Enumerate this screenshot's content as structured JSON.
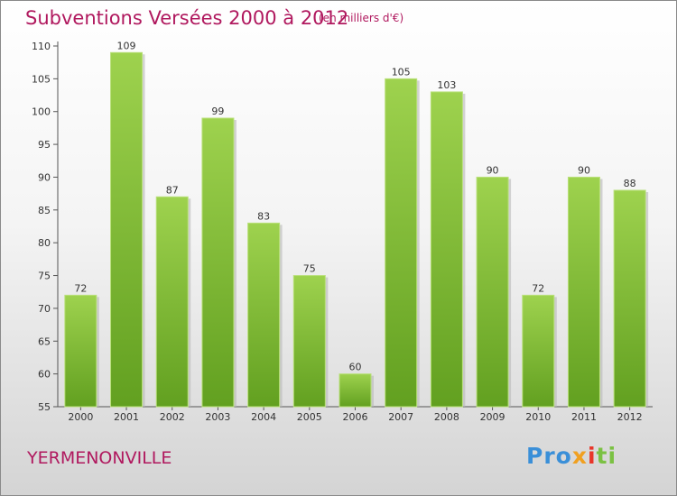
{
  "title": "Subventions Versées 2000 à 2012",
  "subtitle": "(en milliers d'€)",
  "commune": "YERMENONVILLE",
  "logo": {
    "p1": "Pro",
    "p2": "x",
    "p3": "i",
    "p4": "ti"
  },
  "colors": {
    "bar": "#84c23e",
    "bar_dark": "#62a020",
    "title": "#b0185e",
    "axis": "#555555"
  },
  "chart_data": {
    "type": "bar",
    "title": "Subventions Versées 2000 à 2012",
    "unit": "(en milliers d'€)",
    "categories": [
      "2000",
      "2001",
      "2002",
      "2003",
      "2004",
      "2005",
      "2006",
      "2007",
      "2008",
      "2009",
      "2010",
      "2011",
      "2012"
    ],
    "values": [
      72,
      109,
      87,
      99,
      83,
      75,
      60,
      105,
      103,
      90,
      72,
      90,
      88
    ],
    "ylim": [
      55,
      110
    ],
    "yticks": [
      55,
      60,
      65,
      70,
      75,
      80,
      85,
      90,
      95,
      100,
      105,
      110
    ],
    "grid": false,
    "legend": "none"
  }
}
